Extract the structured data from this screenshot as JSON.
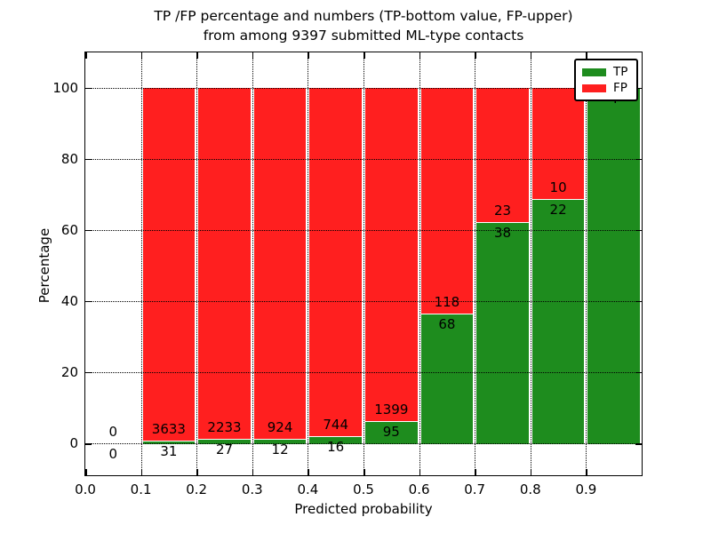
{
  "title": {
    "line1": "TP /FP percentage and numbers (TP-bottom value, FP-upper)",
    "line2": "from among 9397 submitted ML-type contacts"
  },
  "axes": {
    "ylabel": "Percentage",
    "xlabel": "Predicted probability",
    "yticks": [
      "0",
      "20",
      "40",
      "60",
      "80",
      "100"
    ],
    "ytick_values": [
      0,
      20,
      40,
      60,
      80,
      100
    ],
    "xticks": [
      "0.0",
      "0.1",
      "0.2",
      "0.3",
      "0.4",
      "0.5",
      "0.6",
      "0.7",
      "0.8",
      "0.9"
    ]
  },
  "legend": {
    "items": [
      {
        "label": "TP",
        "color": "#1e8c1e"
      },
      {
        "label": "FP",
        "color": "#ff1f1f"
      }
    ]
  },
  "colors": {
    "tp": "#1e8c1e",
    "fp": "#ff1f1f",
    "grid": "#000000",
    "background": "#ffffff"
  },
  "chart_data": {
    "type": "bar",
    "stacked": true,
    "normalized_to_percent": true,
    "title": "TP /FP percentage and numbers (TP-bottom value, FP-upper) from among 9397 submitted ML-type contacts",
    "xlabel": "Predicted probability",
    "ylabel": "Percentage",
    "total_contacts": 9397,
    "categories": [
      "0.0-0.1",
      "0.1-0.2",
      "0.2-0.3",
      "0.3-0.4",
      "0.4-0.5",
      "0.5-0.6",
      "0.6-0.7",
      "0.7-0.8",
      "0.8-0.9",
      "0.9-1.0"
    ],
    "series": [
      {
        "name": "TP",
        "color": "#1e8c1e",
        "counts": [
          0,
          31,
          27,
          12,
          16,
          95,
          68,
          38,
          22,
          4
        ]
      },
      {
        "name": "FP",
        "color": "#ff1f1f",
        "counts": [
          0,
          3633,
          2233,
          924,
          744,
          1399,
          118,
          23,
          10,
          0
        ]
      }
    ],
    "tp_percent_of_bin": [
      0,
      0.85,
      1.19,
      1.28,
      2.11,
      6.36,
      36.56,
      62.3,
      68.75,
      100
    ],
    "bar_labels": {
      "fp": [
        "0",
        "3633",
        "2233",
        "924",
        "744",
        "1399",
        "118",
        "23",
        "10",
        ""
      ],
      "tp": [
        "0",
        "31",
        "27",
        "12",
        "16",
        "95",
        "68",
        "38",
        "22",
        "4"
      ]
    },
    "xlim": [
      0.0,
      1.0
    ],
    "ylim": [
      -9,
      110
    ],
    "grid": "dotted",
    "legend_position": "upper right"
  }
}
